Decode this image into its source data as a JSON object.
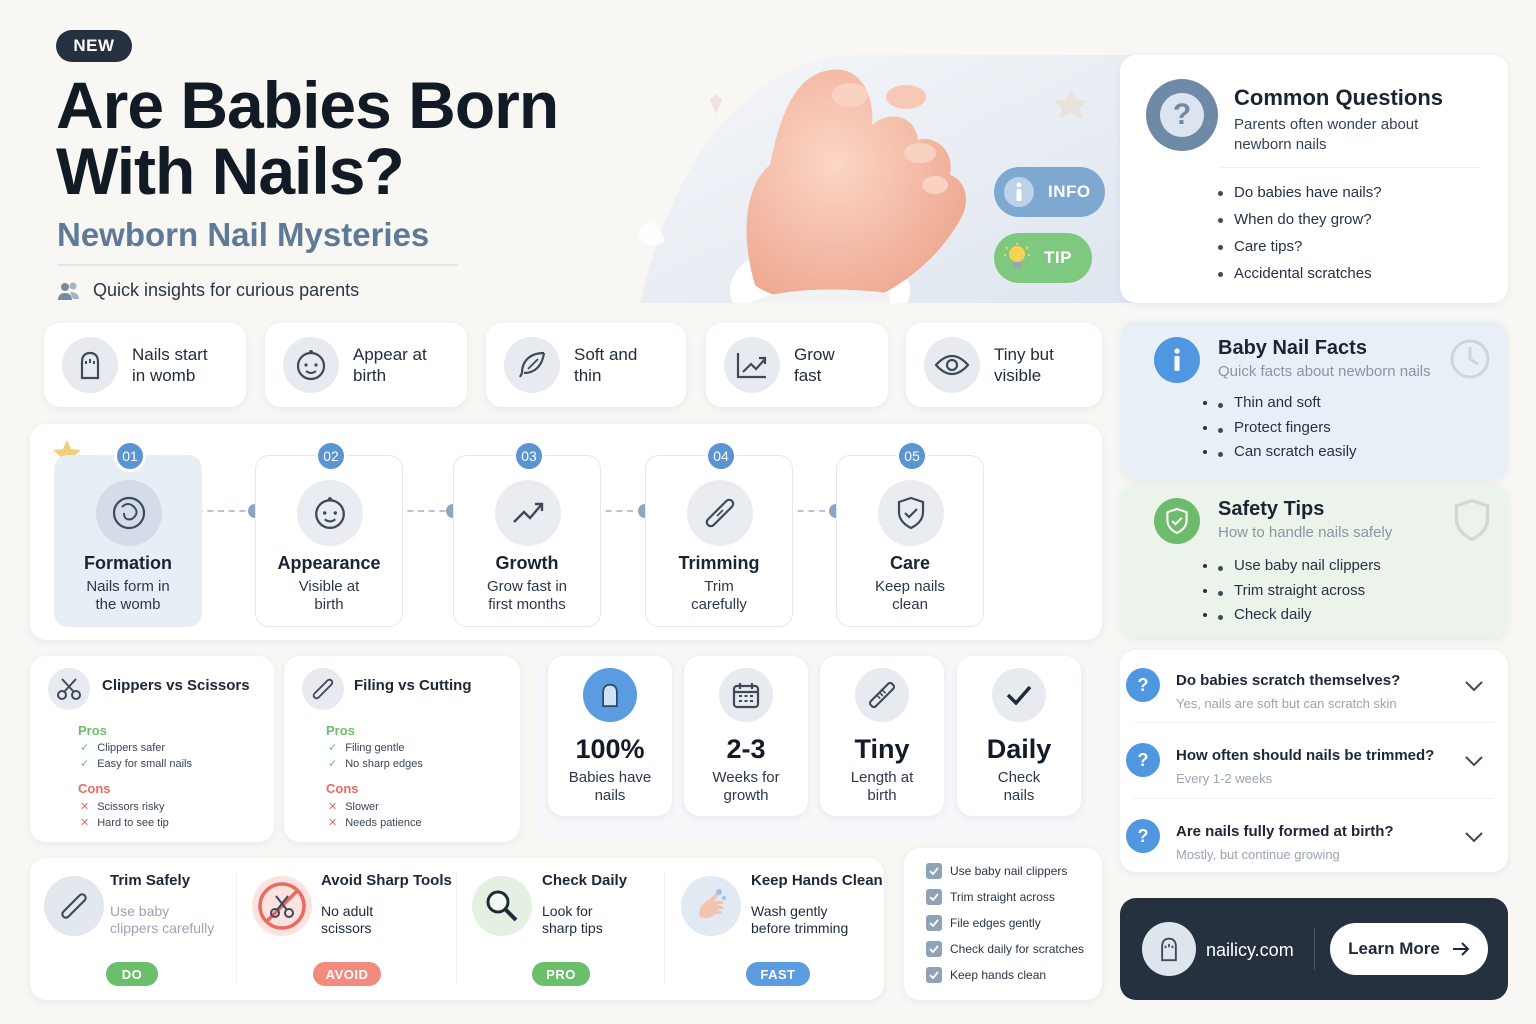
{
  "header": {
    "badge": "NEW",
    "title_line1": "Are Babies Born",
    "title_line2": "With Nails?",
    "subtitle": "Newborn Nail Mysteries",
    "tagline": "Quick insights for curious parents"
  },
  "hero": {
    "info_label": "INFO",
    "tip_label": "TIP"
  },
  "common_questions": {
    "title": "Common Questions",
    "subtitle": "Parents often wonder about newborn nails",
    "items": [
      "Do babies have nails?",
      "When do they grow?",
      "Care tips?",
      "Accidental scratches"
    ]
  },
  "features": [
    {
      "line1": "Nails start",
      "line2": "in womb",
      "icon": "hand-icon"
    },
    {
      "line1": "Appear at",
      "line2": "birth",
      "icon": "baby-face-icon"
    },
    {
      "line1": "Soft and",
      "line2": "thin",
      "icon": "feather-icon"
    },
    {
      "line1": "Grow",
      "line2": "fast",
      "icon": "growth-chart-icon"
    },
    {
      "line1": "Tiny but",
      "line2": "visible",
      "icon": "eye-icon"
    }
  ],
  "timeline": [
    {
      "num": "01",
      "title": "Formation",
      "desc1": "Nails form in",
      "desc2": "the womb"
    },
    {
      "num": "02",
      "title": "Appearance",
      "desc1": "Visible at",
      "desc2": "birth"
    },
    {
      "num": "03",
      "title": "Growth",
      "desc1": "Grow fast in",
      "desc2": "first months"
    },
    {
      "num": "04",
      "title": "Trimming",
      "desc1": "Trim",
      "desc2": "carefully"
    },
    {
      "num": "05",
      "title": "Care",
      "desc1": "Keep nails",
      "desc2": "clean"
    }
  ],
  "facts": {
    "title": "Baby Nail Facts",
    "subtitle": "Quick facts about newborn nails",
    "items": [
      "Thin and soft",
      "Protect fingers",
      "Can scratch easily"
    ]
  },
  "safety": {
    "title": "Safety Tips",
    "subtitle": "How to handle nails safely",
    "items": [
      "Use baby nail clippers",
      "Trim straight across",
      "Check daily"
    ]
  },
  "compare": [
    {
      "title": "Clippers vs Scissors",
      "pros_label": "Pros",
      "pros": [
        "Clippers safer",
        "Easy for small nails"
      ],
      "cons_label": "Cons",
      "cons": [
        "Scissors risky",
        "Hard to see tip"
      ]
    },
    {
      "title": "Filing vs Cutting",
      "pros_label": "Pros",
      "pros": [
        "Filing gentle",
        "No sharp edges"
      ],
      "cons_label": "Cons",
      "cons": [
        "Slower",
        "Needs patience"
      ]
    }
  ],
  "stats": [
    {
      "value": "100%",
      "line1": "Babies have",
      "line2": "nails"
    },
    {
      "value": "2-3",
      "line1": "Weeks for",
      "line2": "growth"
    },
    {
      "value": "Tiny",
      "line1": "Length at",
      "line2": "birth"
    },
    {
      "value": "Daily",
      "line1": "Check",
      "line2": "nails"
    }
  ],
  "actions": [
    {
      "title": "Trim Safely",
      "line1": "Use baby",
      "line2": "clippers carefully",
      "tag": "DO",
      "color": "#6bbf6b"
    },
    {
      "title": "Avoid Sharp Tools",
      "line1": "No adult",
      "line2": "scissors",
      "tag": "AVOID",
      "color": "#f28b7e"
    },
    {
      "title": "Check Daily",
      "line1": "Look for",
      "line2": "sharp tips",
      "tag": "PRO",
      "color": "#6bbf6b"
    },
    {
      "title": "Keep Hands Clean",
      "line1": "Wash gently",
      "line2": "before trimming",
      "tag": "FAST",
      "color": "#5b9be0"
    }
  ],
  "checklist": [
    "Use baby nail clippers",
    "Trim straight across",
    "File edges gently",
    "Check daily for scratches",
    "Keep hands clean"
  ],
  "faq": [
    {
      "q": "Do babies scratch themselves?",
      "a": "Yes, nails are soft but can scratch skin"
    },
    {
      "q": "How often should nails be trimmed?",
      "a": "Every 1-2 weeks"
    },
    {
      "q": "Are nails fully formed at birth?",
      "a": "Mostly, but continue growing"
    }
  ],
  "footer": {
    "site": "nailicy.com",
    "cta": "Learn More"
  }
}
